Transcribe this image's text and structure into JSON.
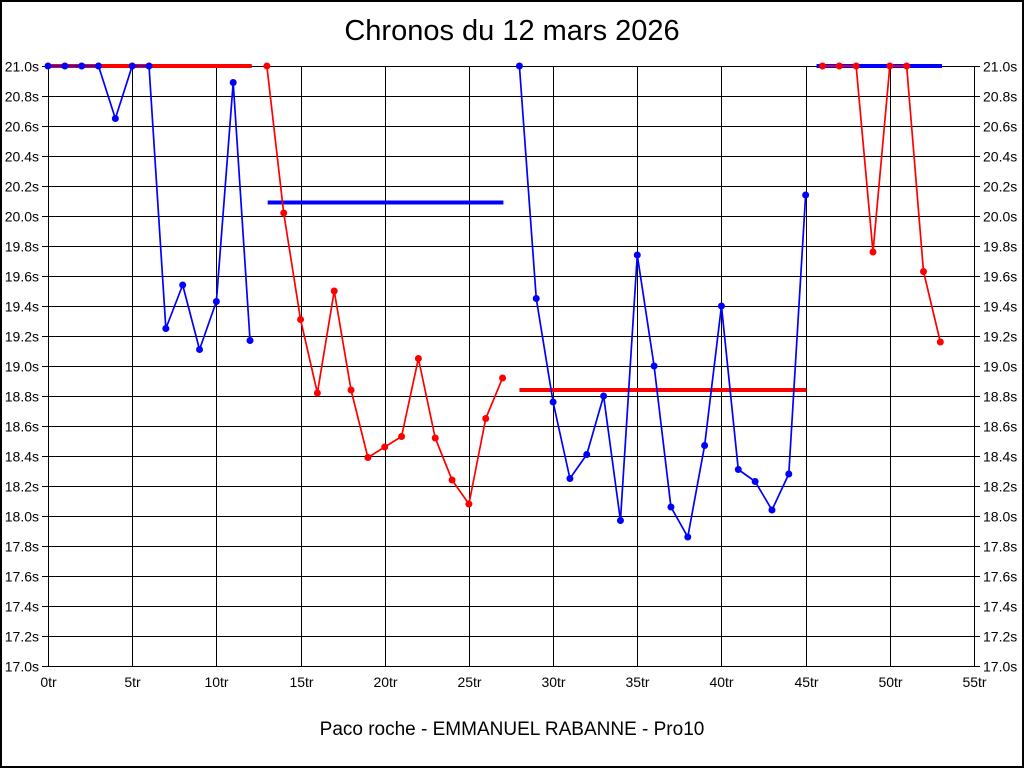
{
  "chart_data": {
    "type": "line",
    "title": "Chronos du 12 mars 2026",
    "footer": "Paco roche - EMMANUEL RABANNE - Pro10",
    "xlabel": "",
    "ylabel": "",
    "x_unit": "tr",
    "y_unit": "s",
    "xlim": [
      0,
      55
    ],
    "ylim": [
      17.0,
      21.0
    ],
    "grid": true,
    "legend": "none",
    "x_ticks": [
      "0tr",
      "5tr",
      "10tr",
      "15tr",
      "20tr",
      "25tr",
      "30tr",
      "35tr",
      "40tr",
      "45tr",
      "50tr",
      "55tr"
    ],
    "y_ticks": [
      "21.0s",
      "20.8s",
      "20.6s",
      "20.4s",
      "20.2s",
      "20.0s",
      "19.8s",
      "19.6s",
      "19.4s",
      "19.2s",
      "19.0s",
      "18.8s",
      "18.6s",
      "18.4s",
      "18.2s",
      "18.0s",
      "17.8s",
      "17.6s",
      "17.4s",
      "17.2s",
      "17.0s"
    ],
    "colors": {
      "blue": "#0000ff",
      "red": "#ff0000",
      "grid": "#000000",
      "background": "#ffffff"
    },
    "series": [
      {
        "name": "stint-1-blue",
        "color": "#0000ff",
        "points": [
          [
            0,
            21.0
          ],
          [
            1,
            21.0
          ],
          [
            2,
            21.0
          ],
          [
            3,
            21.0
          ],
          [
            4,
            20.65
          ],
          [
            5,
            21.0
          ],
          [
            6,
            21.0
          ],
          [
            7,
            19.25
          ],
          [
            8,
            19.54
          ],
          [
            9,
            19.11
          ],
          [
            10,
            19.43
          ],
          [
            11,
            20.89
          ],
          [
            12,
            19.17
          ]
        ]
      },
      {
        "name": "stint-2-red",
        "color": "#ff0000",
        "points": [
          [
            13,
            21.0
          ],
          [
            14,
            20.02
          ],
          [
            15,
            19.31
          ],
          [
            16,
            18.82
          ],
          [
            17,
            19.5
          ],
          [
            18,
            18.84
          ],
          [
            19,
            18.39
          ],
          [
            20,
            18.46
          ],
          [
            21,
            18.53
          ],
          [
            22,
            19.05
          ],
          [
            23,
            18.52
          ],
          [
            24,
            18.24
          ],
          [
            25,
            18.08
          ],
          [
            26,
            18.65
          ],
          [
            27,
            18.92
          ]
        ]
      },
      {
        "name": "stint-3-blue",
        "color": "#0000ff",
        "points": [
          [
            28,
            21.0
          ],
          [
            29,
            19.45
          ],
          [
            30,
            18.76
          ],
          [
            31,
            18.25
          ],
          [
            32,
            18.41
          ],
          [
            33,
            18.8
          ],
          [
            34,
            17.97
          ],
          [
            35,
            19.74
          ],
          [
            36,
            19.0
          ],
          [
            37,
            18.06
          ],
          [
            38,
            17.86
          ],
          [
            39,
            18.47
          ],
          [
            40,
            19.4
          ],
          [
            41,
            18.31
          ],
          [
            42,
            18.23
          ],
          [
            43,
            18.04
          ],
          [
            44,
            18.28
          ],
          [
            45,
            20.14
          ]
        ]
      },
      {
        "name": "stint-4-red",
        "color": "#ff0000",
        "points": [
          [
            46,
            21.0
          ],
          [
            47,
            21.0
          ],
          [
            48,
            21.0
          ],
          [
            49,
            19.76
          ],
          [
            50,
            21.0
          ],
          [
            51,
            21.0
          ],
          [
            52,
            19.63
          ],
          [
            53,
            19.16
          ]
        ]
      }
    ],
    "average_lines": [
      {
        "name": "avg-line-red-stint-1",
        "color": "#ff0000",
        "value": 21.0,
        "from": 0,
        "to": 12.1
      },
      {
        "name": "avg-line-blue-stint-2",
        "color": "#0000ff",
        "value": 20.09,
        "from": 13.05,
        "to": 27.05
      },
      {
        "name": "avg-line-red-stint-3",
        "color": "#ff0000",
        "value": 18.84,
        "from": 28.0,
        "to": 45.05
      },
      {
        "name": "avg-line-blue-stint-4",
        "color": "#0000ff",
        "value": 21.0,
        "from": 45.65,
        "to": 53.1
      }
    ]
  }
}
